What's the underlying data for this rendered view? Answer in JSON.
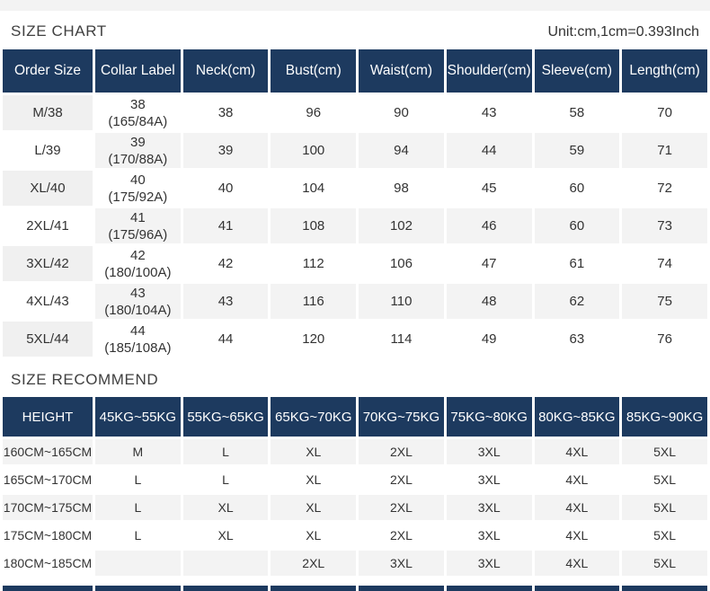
{
  "size_chart": {
    "title": "SIZE CHART",
    "unit_note": "Unit:cm,1cm=0.393Inch",
    "columns": [
      "Order Size",
      "Collar Label",
      "Neck(cm)",
      "Bust(cm)",
      "Waist(cm)",
      "Shoulder(cm)",
      "Sleeve(cm)",
      "Length(cm)"
    ],
    "rows": [
      {
        "order_size": "M/38",
        "collar": [
          "38",
          "(165/84A)"
        ],
        "measurements": [
          "38",
          "96",
          "90",
          "43",
          "58",
          "70"
        ]
      },
      {
        "order_size": "L/39",
        "collar": [
          "39",
          "(170/88A)"
        ],
        "measurements": [
          "39",
          "100",
          "94",
          "44",
          "59",
          "71"
        ]
      },
      {
        "order_size": "XL/40",
        "collar": [
          "40",
          "(175/92A)"
        ],
        "measurements": [
          "40",
          "104",
          "98",
          "45",
          "60",
          "72"
        ]
      },
      {
        "order_size": "2XL/41",
        "collar": [
          "41",
          "(175/96A)"
        ],
        "measurements": [
          "41",
          "108",
          "102",
          "46",
          "60",
          "73"
        ]
      },
      {
        "order_size": "3XL/42",
        "collar": [
          "42",
          "(180/100A)"
        ],
        "measurements": [
          "42",
          "112",
          "106",
          "47",
          "61",
          "74"
        ]
      },
      {
        "order_size": "4XL/43",
        "collar": [
          "43",
          "(180/104A)"
        ],
        "measurements": [
          "43",
          "116",
          "110",
          "48",
          "62",
          "75"
        ]
      },
      {
        "order_size": "5XL/44",
        "collar": [
          "44",
          "(185/108A)"
        ],
        "measurements": [
          "44",
          "120",
          "114",
          "49",
          "63",
          "76"
        ]
      }
    ]
  },
  "size_recommend": {
    "title": "SIZE RECOMMEND",
    "columns": [
      "HEIGHT",
      "45KG~55KG",
      "55KG~65KG",
      "65KG~70KG",
      "70KG~75KG",
      "75KG~80KG",
      "80KG~85KG",
      "85KG~90KG"
    ],
    "rows": [
      {
        "height": "160CM~165CM",
        "values": [
          "M",
          "L",
          "XL",
          "2XL",
          "3XL",
          "4XL",
          "5XL"
        ]
      },
      {
        "height": "165CM~170CM",
        "values": [
          "L",
          "L",
          "XL",
          "2XL",
          "3XL",
          "4XL",
          "5XL"
        ]
      },
      {
        "height": "170CM~175CM",
        "values": [
          "L",
          "XL",
          "XL",
          "2XL",
          "3XL",
          "4XL",
          "5XL"
        ]
      },
      {
        "height": "175CM~180CM",
        "values": [
          "L",
          "XL",
          "XL",
          "2XL",
          "3XL",
          "4XL",
          "5XL"
        ]
      },
      {
        "height": "180CM~185CM",
        "values": [
          "",
          "",
          "2XL",
          "3XL",
          "3XL",
          "4XL",
          "5XL"
        ]
      }
    ]
  },
  "colors": {
    "header_bg": "#1d3a5f",
    "row_shade": "#f3f3f3",
    "text": "#333333"
  }
}
